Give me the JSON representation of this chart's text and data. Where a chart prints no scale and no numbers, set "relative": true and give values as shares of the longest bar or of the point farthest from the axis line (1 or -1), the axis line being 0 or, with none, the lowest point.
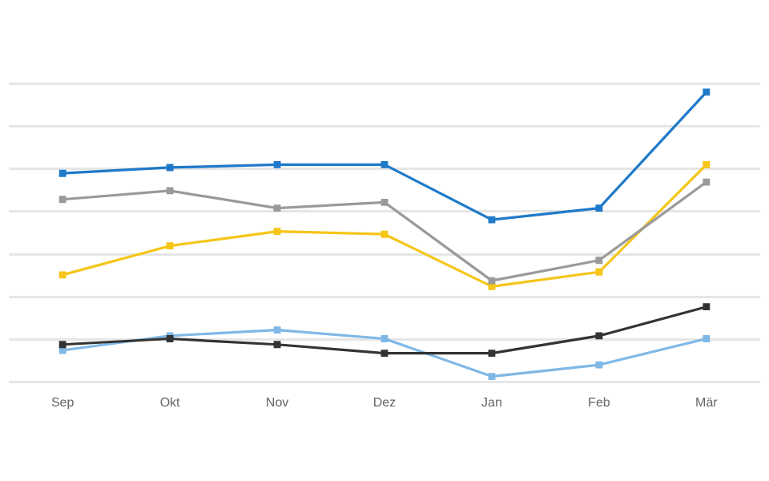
{
  "chart_data": {
    "type": "line",
    "relative": true,
    "categories": [
      "Sep",
      "Okt",
      "Nov",
      "Dez",
      "Jan",
      "Feb",
      "Mär"
    ],
    "grid": "y",
    "marker": "square",
    "line_style": "solid",
    "legend": false,
    "series": [
      {
        "color": "#1f7ac9",
        "values": [
          0.72,
          0.74,
          0.75,
          0.75,
          0.56,
          0.6,
          1.0
        ]
      },
      {
        "color": "#9a9a9a",
        "values": [
          0.63,
          0.66,
          0.6,
          0.62,
          0.35,
          0.42,
          0.69
        ]
      },
      {
        "color": "#f5c518",
        "values": [
          0.37,
          0.47,
          0.52,
          0.51,
          0.33,
          0.38,
          0.75
        ]
      },
      {
        "color": "#333333",
        "values": [
          0.13,
          0.15,
          0.13,
          0.1,
          0.1,
          0.16,
          0.26
        ]
      },
      {
        "color": "#7fb8e6",
        "values": [
          0.11,
          0.16,
          0.18,
          0.15,
          0.02,
          0.06,
          0.15
        ]
      }
    ]
  }
}
